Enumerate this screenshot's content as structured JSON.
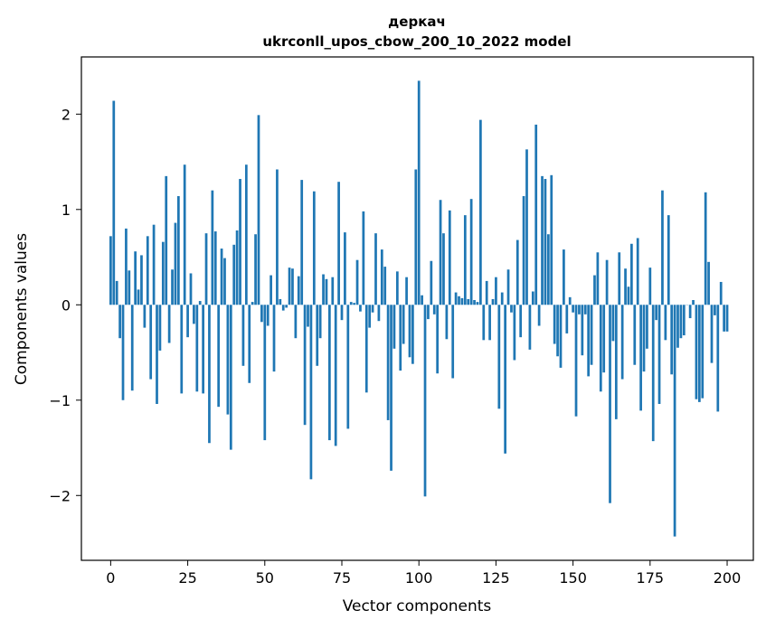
{
  "chart_data": {
    "type": "bar",
    "title": "деркач",
    "subtitle": "ukrconll_upos_cbow_200_10_2022 model",
    "xlabel": "Vector components",
    "ylabel": "Components values",
    "xlim": [
      -9.5,
      208.5
    ],
    "ylim": [
      -2.68,
      2.6
    ],
    "x_ticks": [
      0,
      25,
      50,
      75,
      100,
      125,
      150,
      175,
      200
    ],
    "x_tick_labels": [
      "0",
      "25",
      "50",
      "75",
      "100",
      "125",
      "150",
      "175",
      "200"
    ],
    "y_ticks": [
      -2,
      -1,
      0,
      1,
      2
    ],
    "y_tick_labels": [
      "−2",
      "−1",
      "0",
      "1",
      "2"
    ],
    "grid": false,
    "bar_color": "#1f77b4",
    "series": [
      {
        "values": [
          0.72,
          2.14,
          0.25,
          -0.35,
          -1.0,
          0.8,
          0.36,
          -0.9,
          0.56,
          0.16,
          0.52,
          -0.24,
          0.72,
          -0.78,
          0.84,
          -1.04,
          -0.48,
          0.66,
          1.35,
          -0.4,
          0.37,
          0.86,
          1.14,
          -0.93,
          1.47,
          -0.34,
          0.33,
          -0.2,
          -0.91,
          0.04,
          -0.93,
          0.75,
          -1.45,
          1.2,
          0.77,
          -1.07,
          0.59,
          0.49,
          -1.15,
          -1.52,
          0.63,
          0.78,
          1.32,
          -0.64,
          1.47,
          -0.82,
          0.03,
          0.74,
          1.99,
          -0.18,
          -1.42,
          -0.22,
          0.31,
          -0.7,
          1.42,
          0.06,
          -0.06,
          -0.03,
          0.39,
          0.38,
          -0.35,
          0.3,
          1.31,
          -1.26,
          -0.23,
          -1.83,
          1.19,
          -0.64,
          -0.35,
          0.32,
          0.27,
          -1.42,
          0.29,
          -1.48,
          1.29,
          -0.16,
          0.76,
          -1.3,
          0.03,
          0.02,
          0.47,
          -0.07,
          0.98,
          -0.92,
          -0.24,
          -0.08,
          0.75,
          -0.17,
          0.58,
          0.4,
          -1.21,
          -1.74,
          -0.46,
          0.35,
          -0.69,
          -0.41,
          0.29,
          -0.55,
          -0.62,
          1.42,
          2.35,
          0.1,
          -2.01,
          -0.15,
          0.46,
          -0.1,
          -0.72,
          1.1,
          0.75,
          -0.36,
          0.99,
          -0.77,
          0.13,
          0.09,
          0.07,
          0.94,
          0.06,
          1.11,
          0.05,
          0.03,
          1.94,
          -0.37,
          0.25,
          -0.37,
          0.06,
          0.29,
          -1.09,
          0.13,
          -1.56,
          0.37,
          -0.08,
          -0.58,
          0.68,
          -0.34,
          1.14,
          1.63,
          -0.47,
          0.14,
          1.89,
          -0.22,
          1.35,
          1.32,
          0.74,
          1.36,
          -0.41,
          -0.54,
          -0.66,
          0.58,
          -0.3,
          0.08,
          -0.08,
          -1.17,
          -0.1,
          -0.53,
          -0.1,
          -0.75,
          -0.63,
          0.31,
          0.55,
          -0.91,
          -0.71,
          0.47,
          -2.08,
          -0.38,
          -1.2,
          0.55,
          -0.78,
          0.38,
          0.19,
          0.64,
          -0.63,
          0.7,
          -1.11,
          -0.7,
          -0.46,
          0.39,
          -1.43,
          -0.16,
          -1.04,
          1.2,
          -0.37,
          0.94,
          -0.73,
          -2.43,
          -0.45,
          -0.35,
          -0.32,
          0.0,
          -0.14,
          0.05,
          -0.99,
          -1.02,
          -0.98,
          1.18,
          0.45,
          -0.61,
          -0.11,
          -1.12,
          0.24,
          -0.28,
          -0.28
        ]
      }
    ]
  }
}
